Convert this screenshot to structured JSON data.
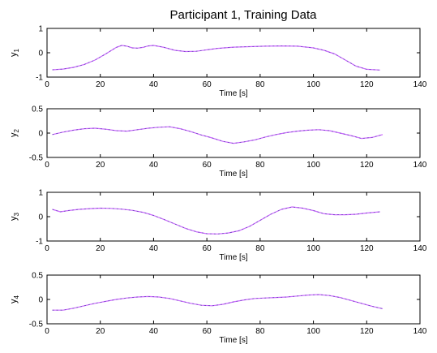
{
  "figure_title": "Participant 1, Training Data",
  "chart_data": [
    {
      "type": "line",
      "ylabel": "y",
      "ylabel_sub": "1",
      "xlabel": "Time [s]",
      "xlim": [
        0,
        140
      ],
      "ylim": [
        -1,
        1
      ],
      "xticks": [
        0,
        20,
        40,
        60,
        80,
        100,
        120,
        140
      ],
      "yticks": [
        -1,
        0,
        1
      ],
      "series": [
        {
          "color": "#cc66ff",
          "x": [
            2,
            6,
            10,
            14,
            18,
            22,
            26,
            28,
            30,
            32,
            34,
            36,
            38,
            40,
            44,
            48,
            52,
            56,
            60,
            64,
            70,
            76,
            82,
            88,
            94,
            100,
            104,
            108,
            112,
            116,
            120,
            125
          ],
          "y": [
            -0.7,
            -0.67,
            -0.6,
            -0.48,
            -0.3,
            -0.05,
            0.22,
            0.3,
            0.27,
            0.2,
            0.19,
            0.22,
            0.28,
            0.3,
            0.22,
            0.1,
            0.05,
            0.06,
            0.12,
            0.18,
            0.23,
            0.25,
            0.27,
            0.28,
            0.27,
            0.2,
            0.1,
            -0.05,
            -0.3,
            -0.55,
            -0.68,
            -0.71
          ]
        }
      ]
    },
    {
      "type": "line",
      "ylabel": "y",
      "ylabel_sub": "2",
      "xlabel": "Time [s]",
      "xlim": [
        0,
        140
      ],
      "ylim": [
        -0.5,
        0.5
      ],
      "xticks": [
        0,
        20,
        40,
        60,
        80,
        100,
        120,
        140
      ],
      "yticks": [
        -0.5,
        0,
        0.5
      ],
      "series": [
        {
          "color": "#cc66ff",
          "x": [
            2,
            6,
            10,
            14,
            18,
            22,
            26,
            30,
            34,
            38,
            42,
            46,
            50,
            54,
            58,
            62,
            66,
            70,
            74,
            78,
            82,
            86,
            90,
            94,
            98,
            102,
            106,
            110,
            114,
            118,
            122,
            126
          ],
          "y": [
            -0.03,
            0.02,
            0.06,
            0.09,
            0.1,
            0.08,
            0.05,
            0.04,
            0.07,
            0.1,
            0.12,
            0.13,
            0.09,
            0.03,
            -0.04,
            -0.1,
            -0.17,
            -0.21,
            -0.18,
            -0.14,
            -0.08,
            -0.03,
            0.01,
            0.04,
            0.06,
            0.07,
            0.05,
            0.0,
            -0.05,
            -0.11,
            -0.09,
            -0.03
          ]
        }
      ]
    },
    {
      "type": "line",
      "ylabel": "y",
      "ylabel_sub": "3",
      "xlabel": "Time [s]",
      "xlim": [
        0,
        140
      ],
      "ylim": [
        -1,
        1
      ],
      "xticks": [
        0,
        20,
        40,
        60,
        80,
        100,
        120,
        140
      ],
      "yticks": [
        -1,
        0,
        1
      ],
      "series": [
        {
          "color": "#cc66ff",
          "x": [
            2,
            5,
            8,
            12,
            16,
            20,
            24,
            28,
            32,
            36,
            40,
            44,
            48,
            52,
            56,
            60,
            64,
            68,
            72,
            76,
            80,
            84,
            88,
            92,
            96,
            100,
            104,
            108,
            112,
            116,
            120,
            125
          ],
          "y": [
            0.3,
            0.2,
            0.25,
            0.3,
            0.33,
            0.35,
            0.34,
            0.31,
            0.26,
            0.18,
            0.05,
            -0.12,
            -0.3,
            -0.48,
            -0.62,
            -0.7,
            -0.71,
            -0.67,
            -0.58,
            -0.4,
            -0.15,
            0.1,
            0.3,
            0.4,
            0.35,
            0.25,
            0.12,
            0.08,
            0.08,
            0.1,
            0.15,
            0.2
          ]
        }
      ]
    },
    {
      "type": "line",
      "ylabel": "y",
      "ylabel_sub": "4",
      "xlabel": "Time [s]",
      "xlim": [
        0,
        140
      ],
      "ylim": [
        -0.5,
        0.5
      ],
      "xticks": [
        0,
        20,
        40,
        60,
        80,
        100,
        120,
        140
      ],
      "yticks": [
        -0.5,
        0,
        0.5
      ],
      "series": [
        {
          "color": "#cc66ff",
          "x": [
            2,
            6,
            10,
            14,
            18,
            22,
            26,
            30,
            34,
            38,
            42,
            46,
            50,
            54,
            58,
            62,
            66,
            70,
            74,
            78,
            82,
            86,
            90,
            94,
            98,
            102,
            106,
            110,
            114,
            118,
            122,
            126
          ],
          "y": [
            -0.22,
            -0.22,
            -0.18,
            -0.13,
            -0.08,
            -0.04,
            0.0,
            0.03,
            0.05,
            0.06,
            0.05,
            0.02,
            -0.03,
            -0.08,
            -0.12,
            -0.13,
            -0.1,
            -0.05,
            -0.01,
            0.02,
            0.03,
            0.04,
            0.05,
            0.07,
            0.09,
            0.1,
            0.08,
            0.04,
            -0.02,
            -0.08,
            -0.14,
            -0.19
          ]
        }
      ]
    }
  ]
}
